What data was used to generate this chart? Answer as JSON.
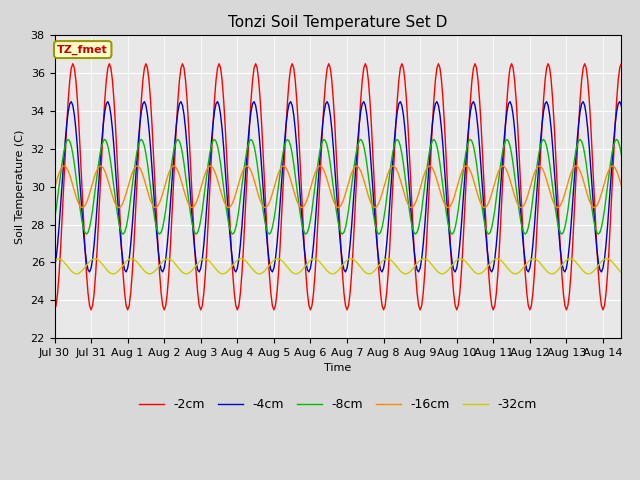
{
  "title": "Tonzi Soil Temperature Set D",
  "xlabel": "Time",
  "ylabel": "Soil Temperature (C)",
  "ylim": [
    22,
    38
  ],
  "series_labels": [
    "-2cm",
    "-4cm",
    "-8cm",
    "-16cm",
    "-32cm"
  ],
  "series_colors": [
    "#ff0000",
    "#0000cc",
    "#00bb00",
    "#ff8800",
    "#cccc00"
  ],
  "xtick_labels": [
    "Jul 30",
    "Jul 31",
    "Aug 1",
    "Aug 2",
    "Aug 3",
    "Aug 4",
    "Aug 5",
    "Aug 6",
    "Aug 7",
    "Aug 8",
    "Aug 9",
    "Aug 10",
    "Aug 11",
    "Aug 12",
    "Aug 13",
    "Aug 14"
  ],
  "annotation_text": "TZ_fmet",
  "annotation_color": "#cc0000",
  "annotation_bg": "#ffffcc",
  "plot_bg": "#e8e8e8",
  "fig_bg": "#d8d8d8",
  "title_fontsize": 11,
  "axis_fontsize": 8,
  "legend_fontsize": 9,
  "mean_temp": 30.0,
  "amp_2cm": 6.5,
  "amp_4cm": 4.5,
  "amp_8cm": 2.5,
  "amp_16cm": 1.1,
  "amp_32cm": 0.4,
  "phase_2cm": 1.57,
  "phase_4cm": 1.27,
  "phase_8cm": 0.77,
  "phase_16cm": 0.07,
  "phase_32cm": -0.93,
  "mean_32cm": 25.8
}
